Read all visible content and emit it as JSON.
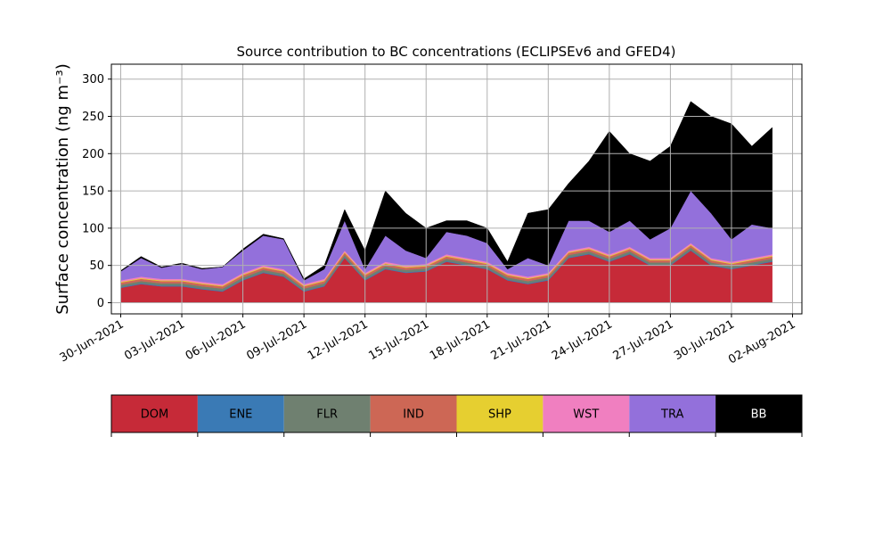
{
  "chart_data": {
    "type": "stacked_area",
    "title": "Source contribution to BC concentrations (ECLIPSEv6 and GFED4)",
    "ylabel": "Surface concentration (ng m⁻³)",
    "x": [
      "2021-06-30",
      "2021-07-01",
      "2021-07-02",
      "2021-07-03",
      "2021-07-04",
      "2021-07-05",
      "2021-07-06",
      "2021-07-07",
      "2021-07-08",
      "2021-07-09",
      "2021-07-10",
      "2021-07-11",
      "2021-07-12",
      "2021-07-13",
      "2021-07-14",
      "2021-07-15",
      "2021-07-16",
      "2021-07-17",
      "2021-07-18",
      "2021-07-19",
      "2021-07-20",
      "2021-07-21",
      "2021-07-22",
      "2021-07-23",
      "2021-07-24",
      "2021-07-25",
      "2021-07-26",
      "2021-07-27",
      "2021-07-28",
      "2021-07-29",
      "2021-07-30",
      "2021-07-31",
      "2021-08-01"
    ],
    "series": [
      {
        "name": "DOM",
        "color": "#c62a38",
        "values": [
          20,
          25,
          22,
          22,
          18,
          15,
          30,
          40,
          35,
          15,
          22,
          60,
          30,
          45,
          40,
          42,
          55,
          50,
          45,
          30,
          25,
          30,
          60,
          65,
          55,
          65,
          50,
          50,
          70,
          50,
          45,
          50,
          55
        ]
      },
      {
        "name": "ENE",
        "color": "#3a7ab5",
        "values": [
          1,
          1,
          1,
          1,
          1,
          1,
          1,
          1,
          1,
          1,
          1,
          1,
          1,
          1,
          1,
          1,
          1,
          1,
          1,
          1,
          1,
          1,
          1,
          1,
          1,
          1,
          1,
          1,
          1,
          1,
          1,
          1,
          1
        ]
      },
      {
        "name": "FLR",
        "color": "#6f8070",
        "values": [
          3,
          3,
          3,
          3,
          3,
          3,
          3,
          3,
          3,
          3,
          3,
          3,
          3,
          3,
          3,
          3,
          3,
          3,
          3,
          3,
          3,
          3,
          3,
          3,
          3,
          3,
          3,
          3,
          3,
          3,
          3,
          3,
          3
        ]
      },
      {
        "name": "IND",
        "color": "#cd6755",
        "values": [
          3,
          3,
          3,
          3,
          3,
          3,
          3,
          3,
          3,
          3,
          3,
          3,
          3,
          3,
          3,
          3,
          3,
          3,
          3,
          3,
          3,
          3,
          3,
          3,
          3,
          3,
          3,
          3,
          3,
          3,
          3,
          3,
          3
        ]
      },
      {
        "name": "SHP",
        "color": "#e6cf30",
        "values": [
          1,
          1,
          1,
          1,
          1,
          1,
          1,
          1,
          1,
          1,
          1,
          1,
          1,
          1,
          1,
          1,
          1,
          1,
          1,
          1,
          1,
          1,
          1,
          1,
          1,
          1,
          1,
          1,
          1,
          1,
          1,
          1,
          1
        ]
      },
      {
        "name": "WST",
        "color": "#f07fc0",
        "values": [
          2,
          2,
          2,
          2,
          2,
          2,
          2,
          2,
          2,
          2,
          2,
          2,
          2,
          2,
          2,
          2,
          2,
          2,
          2,
          2,
          2,
          2,
          2,
          2,
          2,
          2,
          2,
          2,
          2,
          2,
          2,
          2,
          2
        ]
      },
      {
        "name": "TRA",
        "color": "#9370db",
        "values": [
          12,
          25,
          15,
          20,
          17,
          23,
          30,
          40,
          40,
          5,
          13,
          40,
          5,
          35,
          20,
          8,
          30,
          30,
          25,
          5,
          25,
          10,
          40,
          35,
          30,
          35,
          25,
          40,
          70,
          60,
          30,
          45,
          35
        ]
      },
      {
        "name": "BB",
        "color": "#000000",
        "values": [
          1,
          2,
          1,
          1,
          1,
          0,
          2,
          2,
          1,
          2,
          5,
          15,
          25,
          60,
          50,
          40,
          15,
          20,
          20,
          10,
          60,
          75,
          50,
          80,
          135,
          90,
          105,
          110,
          120,
          130,
          155,
          105,
          135
        ]
      }
    ],
    "xlim": [
      "2021-06-30",
      "2021-08-02"
    ],
    "xticks": [
      {
        "value": "2021-06-30",
        "label": "30-Jun-2021"
      },
      {
        "value": "2021-07-03",
        "label": "03-Jul-2021"
      },
      {
        "value": "2021-07-06",
        "label": "06-Jul-2021"
      },
      {
        "value": "2021-07-09",
        "label": "09-Jul-2021"
      },
      {
        "value": "2021-07-12",
        "label": "12-Jul-2021"
      },
      {
        "value": "2021-07-15",
        "label": "15-Jul-2021"
      },
      {
        "value": "2021-07-18",
        "label": "18-Jul-2021"
      },
      {
        "value": "2021-07-21",
        "label": "21-Jul-2021"
      },
      {
        "value": "2021-07-24",
        "label": "24-Jul-2021"
      },
      {
        "value": "2021-07-27",
        "label": "27-Jul-2021"
      },
      {
        "value": "2021-07-30",
        "label": "30-Jul-2021"
      },
      {
        "value": "2021-08-02",
        "label": "02-Aug-2021"
      }
    ],
    "ylim": [
      -15,
      320
    ],
    "yticks": [
      0,
      50,
      100,
      150,
      200,
      250,
      300
    ],
    "grid": true
  }
}
